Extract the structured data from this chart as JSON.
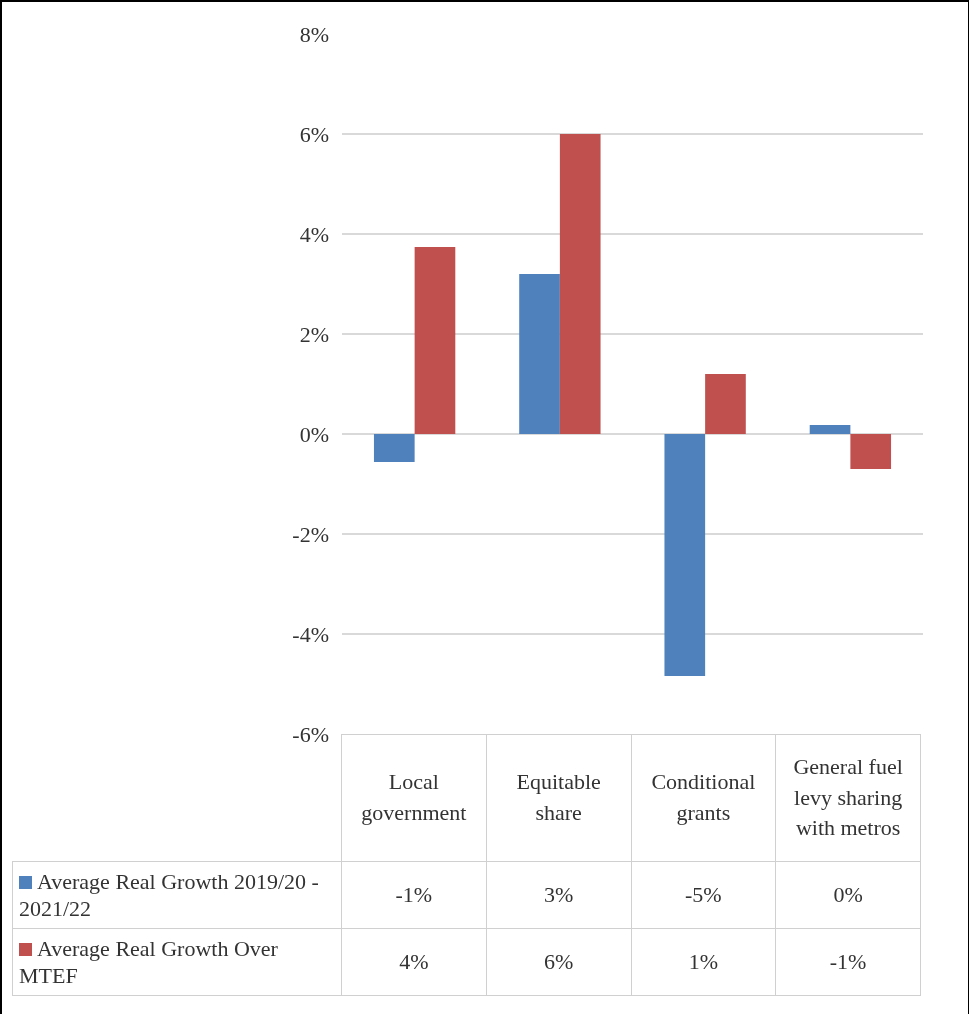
{
  "chart_data": {
    "type": "bar",
    "categories": [
      "Local government",
      "Equitable share",
      "Conditional grants",
      "General fuel levy sharing with metros"
    ],
    "series": [
      {
        "name": "Average Real Growth 2019/20 - 2021/22",
        "color": "#4f81bd",
        "values": [
          -0.56,
          3.2,
          -4.84,
          0.18
        ],
        "value_labels": [
          "-1%",
          "3%",
          "-5%",
          "0%"
        ]
      },
      {
        "name": "Average Real Growth Over MTEF",
        "color": "#c0504d",
        "values": [
          3.74,
          6.0,
          1.2,
          -0.7
        ],
        "value_labels": [
          "4%",
          "6%",
          "1%",
          "-1%"
        ]
      }
    ],
    "ylim": [
      -6,
      8
    ],
    "yticks": [
      {
        "value": -6,
        "label": "-6%"
      },
      {
        "value": -4,
        "label": "-4%"
      },
      {
        "value": -2,
        "label": "-2%"
      },
      {
        "value": 0,
        "label": "0%"
      },
      {
        "value": 2,
        "label": "2%"
      },
      {
        "value": 4,
        "label": "4%"
      },
      {
        "value": 6,
        "label": "6%"
      },
      {
        "value": 8,
        "label": "8%"
      }
    ],
    "grid": "y",
    "legend": "bottom"
  }
}
